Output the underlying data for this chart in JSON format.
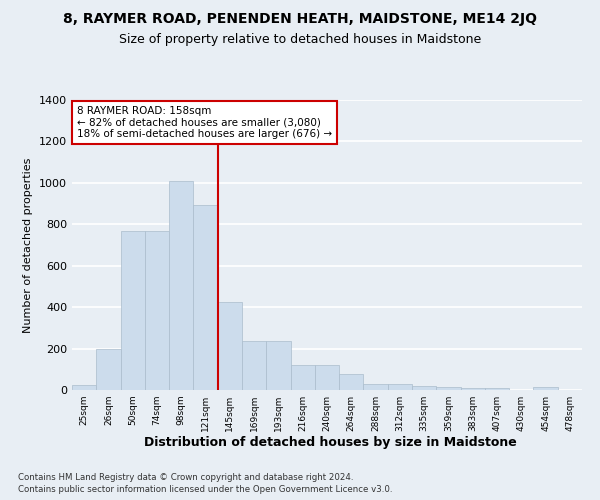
{
  "title": "8, RAYMER ROAD, PENENDEN HEATH, MAIDSTONE, ME14 2JQ",
  "subtitle": "Size of property relative to detached houses in Maidstone",
  "xlabel": "Distribution of detached houses by size in Maidstone",
  "ylabel": "Number of detached properties",
  "footer_line1": "Contains HM Land Registry data © Crown copyright and database right 2024.",
  "footer_line2": "Contains public sector information licensed under the Open Government Licence v3.0.",
  "annotation_line1": "8 RAYMER ROAD: 158sqm",
  "annotation_line2": "← 82% of detached houses are smaller (3,080)",
  "annotation_line3": "18% of semi-detached houses are larger (676) →",
  "bar_color": "#ccdcec",
  "bar_edgecolor": "#aabccc",
  "vline_color": "#cc0000",
  "vline_x_index": 5,
  "background_color": "#e8eef4",
  "plot_bg_color": "#e8eef4",
  "grid_color": "#ffffff",
  "categories": [
    "25sqm",
    "26sqm",
    "50sqm",
    "74sqm",
    "98sqm",
    "121sqm",
    "145sqm",
    "169sqm",
    "193sqm",
    "216sqm",
    "240sqm",
    "264sqm",
    "288sqm",
    "312sqm",
    "335sqm",
    "359sqm",
    "383sqm",
    "407sqm",
    "430sqm",
    "454sqm",
    "478sqm"
  ],
  "values": [
    25,
    200,
    770,
    770,
    1010,
    895,
    425,
    235,
    235,
    120,
    120,
    75,
    30,
    30,
    20,
    15,
    10,
    10,
    0,
    13,
    0
  ],
  "ylim": [
    0,
    1400
  ],
  "yticks": [
    0,
    200,
    400,
    600,
    800,
    1000,
    1200,
    1400
  ],
  "title_fontsize": 10,
  "subtitle_fontsize": 9,
  "xlabel_fontsize": 9,
  "ylabel_fontsize": 8
}
